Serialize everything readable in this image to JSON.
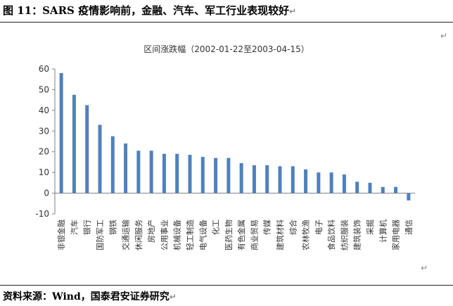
{
  "page": {
    "figure_title": "图 11：SARS 疫情影响前，金融、汽车、军工行业表现较好",
    "source_text": "资料来源：Wind，国泰君安证券研究",
    "edit_marks": {
      "title_end": "↵",
      "right_top": "↵",
      "right_bottom": "↵",
      "source_end": "↵"
    }
  },
  "chart_data": {
    "type": "bar",
    "title": "区间涨跌幅（2002-01-22至2003-04-15）",
    "xlabel": "",
    "ylabel": "",
    "ylim": [
      -10,
      60
    ],
    "yticks": [
      -10,
      0,
      10,
      20,
      30,
      40,
      50,
      60
    ],
    "grid": false,
    "legend": "none",
    "bar_color": "#4f81bd",
    "categories": [
      "非银金融",
      "汽车",
      "银行",
      "国防军工",
      "钢铁",
      "交通运输",
      "休闲服务",
      "房地产",
      "公用事业",
      "机械设备",
      "轻工制造",
      "电气设备",
      "化工",
      "医药生物",
      "有色金属",
      "商业贸易",
      "传媒",
      "建筑材料",
      "综合",
      "农林牧渔",
      "电子",
      "食品饮料",
      "纺织服装",
      "建筑装饰",
      "采掘",
      "计算机",
      "家用电器",
      "通信"
    ],
    "values": [
      58,
      47.5,
      42.5,
      33,
      27.5,
      24,
      20.5,
      20.5,
      19,
      19,
      18.5,
      17.5,
      17,
      17,
      14.5,
      13.5,
      13.5,
      13,
      13,
      11.5,
      10,
      10,
      9,
      5.5,
      5,
      3,
      3,
      -3.5
    ]
  }
}
